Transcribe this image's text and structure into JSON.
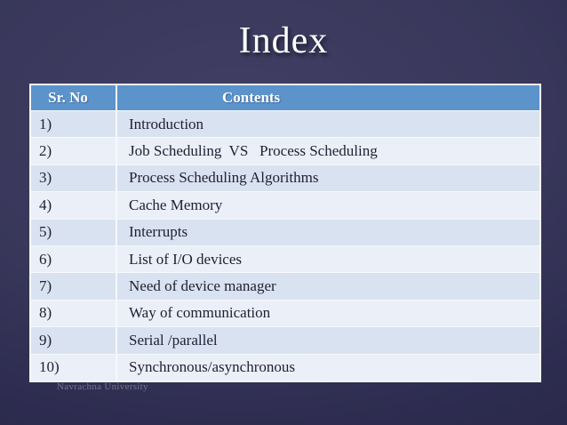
{
  "slide": {
    "title": "Index",
    "footer": "Navrachna University"
  },
  "table": {
    "headers": {
      "sr": "Sr. No",
      "contents": "Contents"
    },
    "rows": [
      {
        "sr": "1)",
        "content": "Introduction"
      },
      {
        "sr": "2)",
        "content": "Job Scheduling  VS   Process Scheduling"
      },
      {
        "sr": "3)",
        "content": "Process Scheduling Algorithms"
      },
      {
        "sr": "4)",
        "content": "Cache Memory"
      },
      {
        "sr": "5)",
        "content": "Interrupts"
      },
      {
        "sr": "6)",
        "content": "List of I/O devices"
      },
      {
        "sr": "7)",
        "content": "Need of device manager"
      },
      {
        "sr": "8)",
        "content": "Way of communication"
      },
      {
        "sr": "9)",
        "content": "Serial /parallel"
      },
      {
        "sr": "10)",
        "content": "Synchronous/asynchronous"
      }
    ]
  },
  "colors": {
    "header_bg": "#5b93ca",
    "row_odd": "#d9e2f0",
    "row_even": "#ebeff7",
    "border": "#f5f8fc",
    "title": "#ffffff",
    "body_text": "#1f1f33",
    "footer_text": "#73738c",
    "background_center": "#413f63",
    "background_edge": "#262545"
  }
}
